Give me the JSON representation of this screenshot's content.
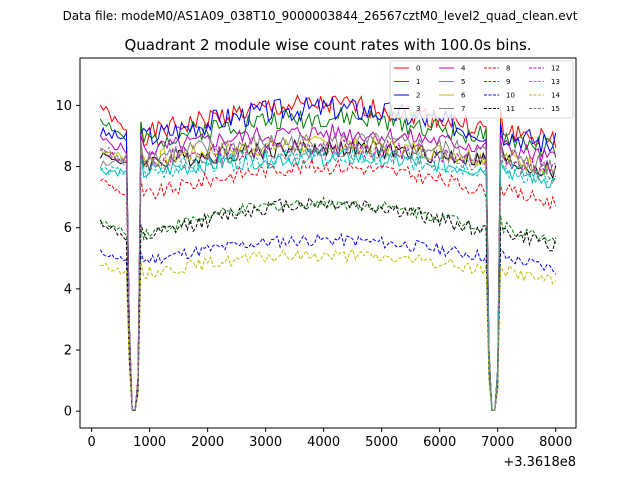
{
  "figure": {
    "suptitle": "Data file: modeM0/AS1A09_038T10_9000003844_26567cztM0_level2_quad_clean.evt",
    "title": "Quadrant 2 module wise count rates with 100.0s bins.",
    "x_offset_label": "+3.3618e8"
  },
  "chart_data": {
    "type": "line",
    "title": "Quadrant 2 module wise count rates with 100.0s bins.",
    "xlabel": "",
    "ylabel": "",
    "xlim": [
      -200,
      8350
    ],
    "ylim": [
      -0.55,
      11.55
    ],
    "x_ticks": [
      0,
      1000,
      2000,
      3000,
      4000,
      5000,
      6000,
      7000,
      8000
    ],
    "x_tick_labels": [
      "0",
      "1000",
      "2000",
      "3000",
      "4000",
      "5000",
      "6000",
      "7000",
      "8000"
    ],
    "y_ticks": [
      0,
      2,
      4,
      6,
      8,
      10
    ],
    "y_tick_labels": [
      "0",
      "2",
      "4",
      "6",
      "8",
      "10"
    ],
    "x_offset": "+3.3618e8",
    "legend_position": "top-right",
    "series": [
      {
        "name": "0",
        "color": "#ff0000",
        "style": "solid",
        "base": 9.0,
        "trend": 1.0,
        "amp": 0.35,
        "start": 10.0,
        "seed": 1
      },
      {
        "name": "1",
        "color": "#008000",
        "style": "solid",
        "base": 8.8,
        "trend": 0.8,
        "amp": 0.35,
        "start": 9.6,
        "seed": 2
      },
      {
        "name": "2",
        "color": "#0000ff",
        "style": "solid",
        "base": 8.9,
        "trend": 1.0,
        "amp": 0.4,
        "start": 9.1,
        "seed": 3
      },
      {
        "name": "3",
        "color": "#000000",
        "style": "solid",
        "base": 8.1,
        "trend": 0.5,
        "amp": 0.3,
        "start": 8.4,
        "seed": 4
      },
      {
        "name": "4",
        "color": "#bf00bf",
        "style": "solid",
        "base": 8.5,
        "trend": 0.6,
        "amp": 0.3,
        "start": 8.9,
        "seed": 5
      },
      {
        "name": "5",
        "color": "#00bfbf",
        "style": "solid",
        "base": 7.8,
        "trend": 0.5,
        "amp": 0.3,
        "start": 7.9,
        "seed": 6
      },
      {
        "name": "6",
        "color": "#bfbf00",
        "style": "solid",
        "base": 8.2,
        "trend": 0.5,
        "amp": 0.3,
        "start": 8.6,
        "seed": 7
      },
      {
        "name": "7",
        "color": "#808080",
        "style": "solid",
        "base": 8.3,
        "trend": 0.5,
        "amp": 0.35,
        "start": 8.0,
        "seed": 8
      },
      {
        "name": "8",
        "color": "#ff0000",
        "style": "dashed",
        "base": 7.0,
        "trend": 1.0,
        "amp": 0.25,
        "start": 7.6,
        "seed": 9
      },
      {
        "name": "9",
        "color": "#008000",
        "style": "dashed",
        "base": 5.8,
        "trend": 1.0,
        "amp": 0.2,
        "start": 6.2,
        "seed": 10
      },
      {
        "name": "10",
        "color": "#0000ff",
        "style": "dashed",
        "base": 4.9,
        "trend": 0.7,
        "amp": 0.2,
        "start": 5.2,
        "seed": 11
      },
      {
        "name": "11",
        "color": "#000000",
        "style": "dashed",
        "base": 5.6,
        "trend": 1.2,
        "amp": 0.25,
        "start": 6.2,
        "seed": 12
      },
      {
        "name": "12",
        "color": "#bf00bf",
        "style": "dashed",
        "base": 8.2,
        "trend": 0.4,
        "amp": 0.3,
        "start": 8.5,
        "seed": 13
      },
      {
        "name": "13",
        "color": "#00bfbf",
        "style": "dashed",
        "base": 7.8,
        "trend": 0.5,
        "amp": 0.3,
        "start": 7.9,
        "seed": 14
      },
      {
        "name": "14",
        "color": "#bfbf00",
        "style": "dashed",
        "base": 4.5,
        "trend": 0.6,
        "amp": 0.2,
        "start": 4.8,
        "seed": 15
      },
      {
        "name": "15",
        "color": "#808080",
        "style": "dashed",
        "base": 8.0,
        "trend": 0.5,
        "amp": 0.3,
        "start": 8.7,
        "seed": 16
      }
    ],
    "notes": "Light curves sampled at 100 s bins from x=150 to x=8000; rates drop to ~0 near x=650-750 and x=6900-7000 (data gaps)."
  }
}
